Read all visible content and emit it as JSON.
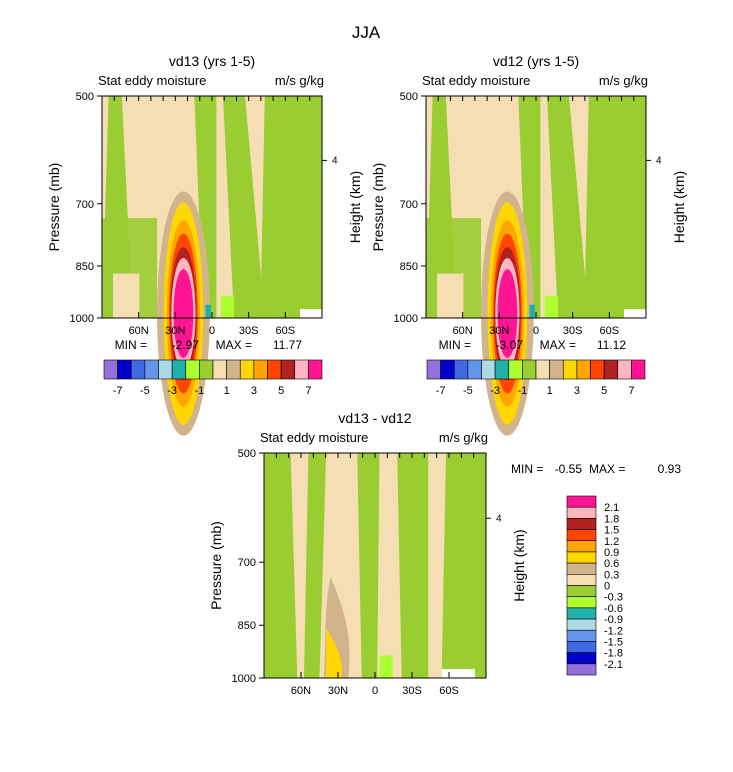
{
  "figure": {
    "title": "JJA"
  },
  "colors": {
    "frame": "#000000",
    "background": "#ffffff"
  },
  "chart_data": [
    {
      "type": "heatmap",
      "id": "vd13",
      "title": "vd13 (yrs 1-5)",
      "subtitle_left": "Stat eddy moisture",
      "subtitle_right": "m/s g/kg",
      "ylabel": "Pressure (mb)",
      "ylabel_right": "Height (km)",
      "y_ticks": [
        "500",
        "700",
        "850",
        "1000"
      ],
      "y_right_ticks": [
        "4"
      ],
      "x_ticks": [
        "60N",
        "30N",
        "0",
        "30S",
        "60S"
      ],
      "min_label": "MIN =",
      "min_value": "-2.97",
      "max_label": "MAX =",
      "max_value": "11.77",
      "colorbar": {
        "orientation": "horizontal",
        "levels": [
          -7,
          -6,
          -5,
          -4,
          -3,
          -2,
          -1,
          0,
          1,
          2,
          3,
          4,
          5,
          6,
          7
        ],
        "tick_labels": [
          "-7",
          "-5",
          "-3",
          "-1",
          "1",
          "3",
          "5",
          "7"
        ],
        "colors": [
          "#9370DB",
          "#0000CD",
          "#4169E1",
          "#6495ED",
          "#ADD8E6",
          "#20B2AA",
          "#ADFF2F",
          "#9ACD32",
          "#F5DEB3",
          "#D2B48C",
          "#FFD700",
          "#FFA500",
          "#FF4500",
          "#B22222",
          "#FFB6C1",
          "#FF1493"
        ]
      }
    },
    {
      "type": "heatmap",
      "id": "vd12",
      "title": "vd12 (yrs 1-5)",
      "subtitle_left": "Stat eddy moisture",
      "subtitle_right": "m/s g/kg",
      "ylabel": "Pressure (mb)",
      "ylabel_right": "Height (km)",
      "y_ticks": [
        "500",
        "700",
        "850",
        "1000"
      ],
      "y_right_ticks": [
        "4"
      ],
      "x_ticks": [
        "60N",
        "30N",
        "0",
        "30S",
        "60S"
      ],
      "min_label": "MIN =",
      "min_value": "-3.07",
      "max_label": "MAX =",
      "max_value": "11.12",
      "colorbar": {
        "orientation": "horizontal",
        "levels": [
          -7,
          -6,
          -5,
          -4,
          -3,
          -2,
          -1,
          0,
          1,
          2,
          3,
          4,
          5,
          6,
          7
        ],
        "tick_labels": [
          "-7",
          "-5",
          "-3",
          "-1",
          "1",
          "3",
          "5",
          "7"
        ],
        "colors": [
          "#9370DB",
          "#0000CD",
          "#4169E1",
          "#6495ED",
          "#ADD8E6",
          "#20B2AA",
          "#ADFF2F",
          "#9ACD32",
          "#F5DEB3",
          "#D2B48C",
          "#FFD700",
          "#FFA500",
          "#FF4500",
          "#B22222",
          "#FFB6C1",
          "#FF1493"
        ]
      }
    },
    {
      "type": "heatmap",
      "id": "diff",
      "title": "vd13 - vd12",
      "subtitle_left": "Stat eddy moisture",
      "subtitle_right": "m/s g/kg",
      "ylabel": "Pressure (mb)",
      "ylabel_right": "Height (km)",
      "y_ticks": [
        "500",
        "700",
        "850",
        "1000"
      ],
      "y_right_ticks": [
        "4"
      ],
      "x_ticks": [
        "60N",
        "30N",
        "0",
        "30S",
        "60S"
      ],
      "min_label": "MIN =",
      "min_value": "-0.55",
      "max_label": "MAX =",
      "max_value": "0.93",
      "colorbar": {
        "orientation": "vertical",
        "tick_labels": [
          "2.1",
          "1.8",
          "1.5",
          "1.2",
          "0.9",
          "0.6",
          "0.3",
          "0",
          "-0.3",
          "-0.6",
          "-0.9",
          "-1.2",
          "-1.5",
          "-1.8",
          "-2.1"
        ],
        "colors": [
          "#FF1493",
          "#FFB6C1",
          "#B22222",
          "#FF4500",
          "#FFA500",
          "#FFD700",
          "#D2B48C",
          "#F5DEB3",
          "#9ACD32",
          "#ADFF2F",
          "#20B2AA",
          "#ADD8E6",
          "#6495ED",
          "#4169E1",
          "#0000CD",
          "#9370DB"
        ]
      }
    }
  ]
}
